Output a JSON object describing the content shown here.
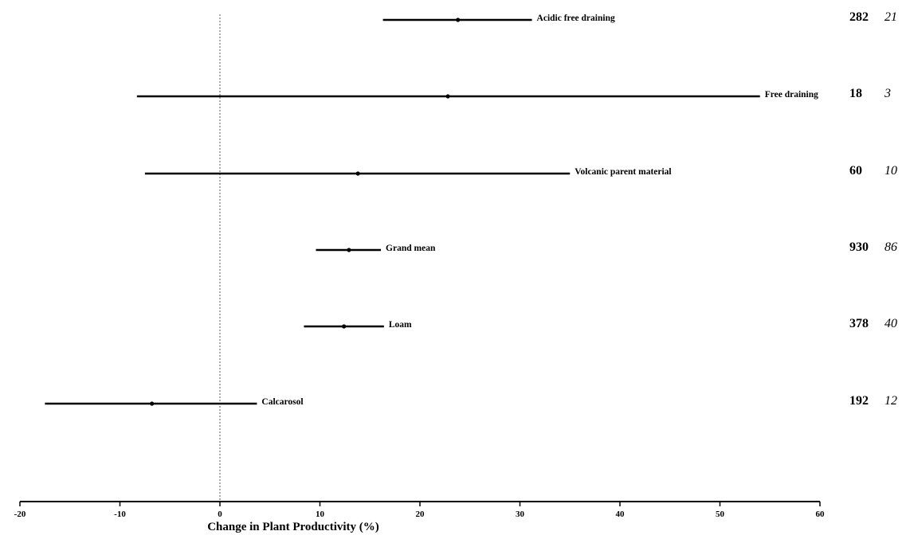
{
  "chart_data": {
    "type": "forest",
    "xlabel": "Change in Plant Productivity (%)",
    "xlim": [
      -20,
      60
    ],
    "xticks": [
      -20,
      -10,
      0,
      10,
      20,
      30,
      40,
      50,
      60
    ],
    "reference_line": 0,
    "grid": false,
    "rows": [
      {
        "label": "Acidic free draining",
        "mean": 23.8,
        "lower": 16.3,
        "upper": 31.2,
        "n_obs": "282",
        "n_studies": "21"
      },
      {
        "label": "Free draining",
        "mean": 22.8,
        "lower": -8.3,
        "upper": 54.0,
        "n_obs": "18",
        "n_studies": "3"
      },
      {
        "label": "Volcanic parent material",
        "mean": 13.8,
        "lower": -7.5,
        "upper": 35.0,
        "n_obs": "60",
        "n_studies": "10"
      },
      {
        "label": "Grand mean",
        "mean": 12.9,
        "lower": 9.6,
        "upper": 16.1,
        "n_obs": "930",
        "n_studies": "86"
      },
      {
        "label": "Loam",
        "mean": 12.4,
        "lower": 8.4,
        "upper": 16.4,
        "n_obs": "378",
        "n_studies": "40"
      },
      {
        "label": "Calcarosol",
        "mean": -6.8,
        "lower": -17.5,
        "upper": 3.7,
        "n_obs": "192",
        "n_studies": "12"
      }
    ]
  }
}
